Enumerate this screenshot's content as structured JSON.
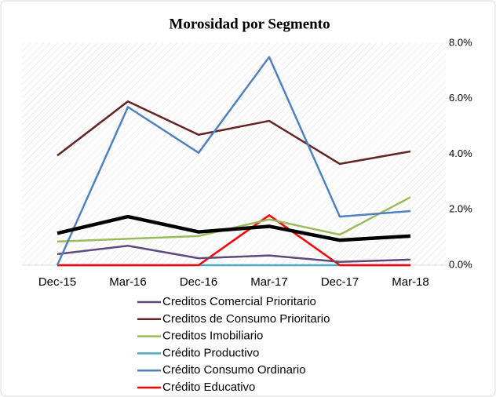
{
  "chart_data": {
    "type": "line",
    "title": "Morosidad por Segmento",
    "categories": [
      "Dec-15",
      "Mar-16",
      "Dec-16",
      "Mar-17",
      "Dec-17",
      "Mar-18"
    ],
    "series": [
      {
        "name": "Creditos Comercial Prioritario",
        "color": "#604a7b",
        "values": [
          0.4,
          0.7,
          0.25,
          0.35,
          0.12,
          0.2
        ]
      },
      {
        "name": "Creditos de Consumo Prioritario",
        "color": "#632523",
        "values": [
          3.95,
          5.9,
          4.7,
          5.2,
          3.65,
          4.1
        ]
      },
      {
        "name": "Creditos Imobiliario",
        "color": "#9bbb59",
        "values": [
          0.85,
          0.95,
          1.05,
          1.65,
          1.1,
          2.45
        ]
      },
      {
        "name": "Crédito Productivo",
        "color": "#4bacc6",
        "values": [
          0,
          0,
          0,
          0,
          0,
          0
        ]
      },
      {
        "name": "Crédito Consumo Ordinario",
        "color": "#4f81bd",
        "values": [
          0,
          5.7,
          4.05,
          7.5,
          1.75,
          1.95
        ]
      },
      {
        "name": "Crédito Educativo",
        "color": "#ff0000",
        "values": [
          0,
          0,
          0,
          1.8,
          0,
          0
        ]
      },
      {
        "color": "#000000",
        "values": [
          1.15,
          1.75,
          1.2,
          1.4,
          0.9,
          1.05
        ]
      }
    ],
    "ylim": [
      0,
      8
    ],
    "yticks": [
      {
        "value": 0,
        "label": "0.0%"
      },
      {
        "value": 2,
        "label": "2.0%"
      },
      {
        "value": 4,
        "label": "4.0%"
      },
      {
        "value": 6,
        "label": "6.0%"
      },
      {
        "value": 8,
        "label": "8.0%"
      }
    ],
    "y_axis_side": "right"
  }
}
